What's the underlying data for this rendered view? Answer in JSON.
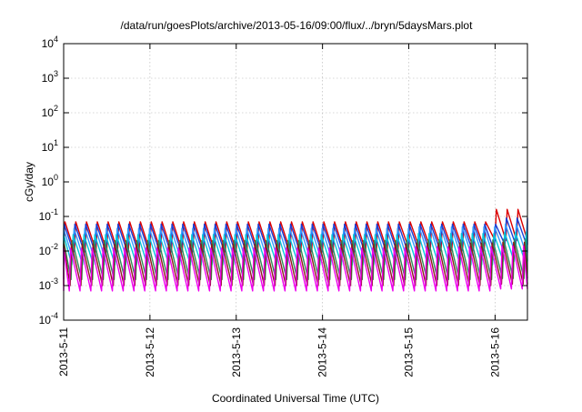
{
  "chart_data": {
    "type": "line",
    "title": "/data/run/goesPlots/archive/2013-05-16/09:00/flux/../bryn/5daysMars.plot",
    "xlabel": "Coordinated Universal Time (UTC)",
    "ylabel": "cGy/day",
    "yscale": "log",
    "ylim": [
      0.0001,
      10000
    ],
    "y_ticks": [
      {
        "value": 0.0001,
        "base": "10",
        "exp": "-4"
      },
      {
        "value": 0.001,
        "base": "10",
        "exp": "-3"
      },
      {
        "value": 0.01,
        "base": "10",
        "exp": "-2"
      },
      {
        "value": 0.1,
        "base": "10",
        "exp": "-1"
      },
      {
        "value": 1,
        "base": "10",
        "exp": "0"
      },
      {
        "value": 10,
        "base": "10",
        "exp": "1"
      },
      {
        "value": 100,
        "base": "10",
        "exp": "2"
      },
      {
        "value": 1000,
        "base": "10",
        "exp": "3"
      },
      {
        "value": 10000,
        "base": "10",
        "exp": "4"
      }
    ],
    "xlim": [
      "2013-05-11",
      "2013-05-16 09:00"
    ],
    "x_ticks": [
      {
        "value": "2013-05-11",
        "label": "2013-5-11"
      },
      {
        "value": "2013-05-12",
        "label": "2013-5-12"
      },
      {
        "value": "2013-05-13",
        "label": "2013-5-13"
      },
      {
        "value": "2013-05-14",
        "label": "2013-5-14"
      },
      {
        "value": "2013-05-15",
        "label": "2013-5-15"
      },
      {
        "value": "2013-05-16",
        "label": "2013-5-16"
      }
    ],
    "grid": true,
    "oscillation_period_hours": 3,
    "series": [
      {
        "color": "#dd0000",
        "peak_y": [
          0.07,
          0.07,
          0.07,
          0.07,
          0.07,
          0.16,
          0.16
        ],
        "trough_y": [
          0.01,
          0.01,
          0.01,
          0.01,
          0.012,
          0.02,
          0.02
        ]
      },
      {
        "color": "#1a3fd6",
        "peak_y": [
          0.06,
          0.06,
          0.06,
          0.06,
          0.06,
          0.09,
          0.09
        ],
        "trough_y": [
          0.009,
          0.009,
          0.009,
          0.009,
          0.01,
          0.015,
          0.015
        ]
      },
      {
        "color": "#3399ff",
        "peak_y": [
          0.045,
          0.045,
          0.045,
          0.045,
          0.05,
          0.06,
          0.06
        ],
        "trough_y": [
          0.006,
          0.006,
          0.006,
          0.006,
          0.007,
          0.009,
          0.009
        ]
      },
      {
        "color": "#00c8d8",
        "peak_y": [
          0.03,
          0.03,
          0.03,
          0.03,
          0.032,
          0.035,
          0.035
        ],
        "trough_y": [
          0.004,
          0.004,
          0.004,
          0.004,
          0.004,
          0.005,
          0.005
        ]
      },
      {
        "color": "#2e8b57",
        "peak_y": [
          0.02,
          0.02,
          0.02,
          0.02,
          0.021,
          0.022,
          0.022
        ],
        "trough_y": [
          0.0015,
          0.0015,
          0.0015,
          0.0015,
          0.0015,
          0.0016,
          0.0016
        ]
      },
      {
        "color": "#8b1a1a",
        "peak_y": [
          0.016,
          0.016,
          0.016,
          0.016,
          0.017,
          0.018,
          0.018
        ],
        "trough_y": [
          0.001,
          0.001,
          0.001,
          0.001,
          0.001,
          0.0011,
          0.0011
        ]
      },
      {
        "color": "#ee00ee",
        "peak_y": [
          0.012,
          0.012,
          0.012,
          0.012,
          0.013,
          0.014,
          0.014
        ],
        "trough_y": [
          0.0007,
          0.0007,
          0.0007,
          0.0007,
          0.0007,
          0.0008,
          0.0008
        ]
      }
    ]
  }
}
